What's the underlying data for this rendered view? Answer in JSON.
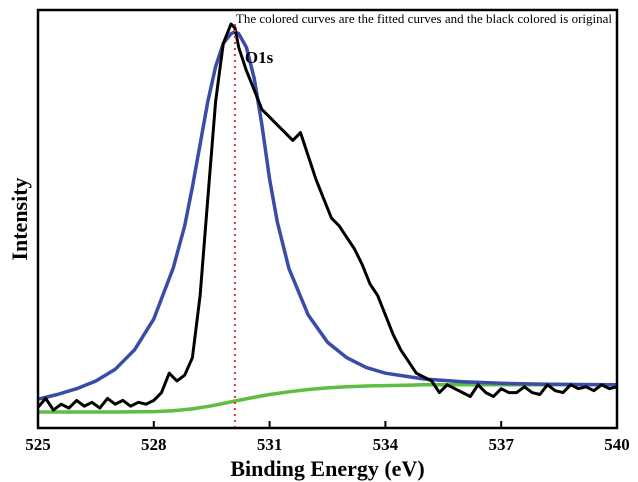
{
  "chart_data": {
    "type": "line",
    "title": "",
    "annotation": "The colored curves are the fitted curves and the black colored is original",
    "peak_label": "O1s",
    "peak_marker_x": 530.1,
    "xlabel": "Binding Energy (eV)",
    "ylabel": "Intensity",
    "xlim": [
      525,
      540
    ],
    "ylim": [
      0,
      1.0
    ],
    "x_ticks": [
      525,
      528,
      531,
      534,
      537,
      540
    ],
    "x_tick_labels": [
      "525",
      "528",
      "531",
      "534",
      "537",
      "540"
    ],
    "y_ticks_shown": false,
    "grid": false,
    "series": [
      {
        "color": "#000000",
        "x": [
          525.0,
          525.2,
          525.4,
          525.6,
          525.8,
          526.0,
          526.2,
          526.4,
          526.6,
          526.8,
          527.0,
          527.2,
          527.4,
          527.6,
          527.8,
          528.0,
          528.2,
          528.4,
          528.6,
          528.8,
          529.0,
          529.2,
          529.4,
          529.6,
          529.8,
          530.0,
          530.1,
          530.2,
          530.4,
          530.6,
          530.8,
          531.0,
          531.2,
          531.4,
          531.6,
          531.8,
          532.0,
          532.2,
          532.4,
          532.6,
          532.8,
          533.0,
          533.2,
          533.4,
          533.6,
          533.8,
          534.0,
          534.2,
          534.4,
          534.6,
          534.8,
          535.0,
          535.2,
          535.4,
          535.6,
          535.8,
          536.0,
          536.2,
          536.4,
          536.6,
          536.8,
          537.0,
          537.2,
          537.4,
          537.6,
          537.8,
          538.0,
          538.2,
          538.4,
          538.6,
          538.8,
          539.0,
          539.2,
          539.4,
          539.6,
          539.8,
          540.0
        ],
        "y": [
          0.012,
          0.035,
          0.005,
          0.02,
          0.01,
          0.03,
          0.015,
          0.025,
          0.01,
          0.035,
          0.02,
          0.03,
          0.015,
          0.025,
          0.02,
          0.03,
          0.05,
          0.1,
          0.08,
          0.095,
          0.14,
          0.3,
          0.55,
          0.8,
          0.95,
          1.0,
          0.99,
          0.94,
          0.88,
          0.83,
          0.78,
          0.76,
          0.74,
          0.72,
          0.7,
          0.72,
          0.66,
          0.6,
          0.55,
          0.5,
          0.48,
          0.45,
          0.42,
          0.38,
          0.33,
          0.3,
          0.25,
          0.2,
          0.16,
          0.13,
          0.1,
          0.09,
          0.08,
          0.05,
          0.07,
          0.06,
          0.05,
          0.04,
          0.07,
          0.05,
          0.04,
          0.06,
          0.05,
          0.05,
          0.065,
          0.05,
          0.045,
          0.07,
          0.055,
          0.05,
          0.07,
          0.06,
          0.065,
          0.055,
          0.07,
          0.06,
          0.065
        ]
      },
      {
        "color": "#3b4ba8",
        "x": [
          525.0,
          525.5,
          526.0,
          526.5,
          527.0,
          527.5,
          528.0,
          528.5,
          528.8,
          529.0,
          529.2,
          529.4,
          529.6,
          529.8,
          530.0,
          530.1,
          530.2,
          530.4,
          530.6,
          530.8,
          531.0,
          531.2,
          531.5,
          532.0,
          532.5,
          533.0,
          533.5,
          534.0,
          535.0,
          536.0,
          537.0,
          538.0,
          539.0,
          540.0
        ],
        "y": [
          0.033,
          0.045,
          0.06,
          0.08,
          0.11,
          0.16,
          0.24,
          0.37,
          0.48,
          0.58,
          0.69,
          0.8,
          0.89,
          0.95,
          0.975,
          0.98,
          0.975,
          0.94,
          0.86,
          0.74,
          0.6,
          0.49,
          0.37,
          0.25,
          0.18,
          0.14,
          0.115,
          0.1,
          0.085,
          0.078,
          0.074,
          0.072,
          0.071,
          0.07
        ]
      },
      {
        "color": "#5dbd45",
        "x": [
          525.0,
          526.0,
          527.0,
          528.0,
          528.5,
          529.0,
          529.5,
          530.0,
          530.5,
          531.0,
          531.5,
          532.0,
          532.5,
          533.0,
          533.5,
          534.0,
          534.5,
          535.0,
          536.0,
          537.0,
          538.0,
          539.0,
          540.0
        ],
        "y": [
          0.0,
          0.0,
          0.0,
          0.001,
          0.003,
          0.008,
          0.016,
          0.026,
          0.036,
          0.045,
          0.052,
          0.058,
          0.062,
          0.065,
          0.067,
          0.068,
          0.069,
          0.07,
          0.07,
          0.07,
          0.07,
          0.07,
          0.07
        ]
      }
    ]
  }
}
